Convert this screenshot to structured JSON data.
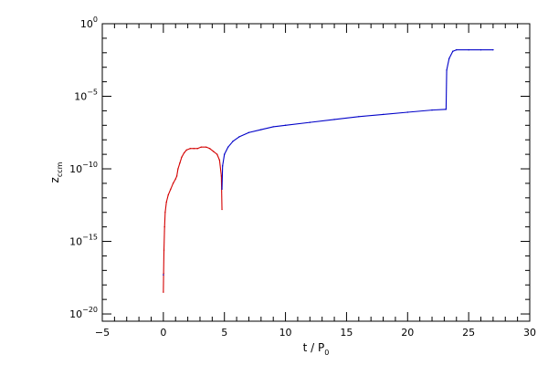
{
  "chart_data": {
    "type": "scatter",
    "title": "",
    "xlabel": {
      "main": "t / P",
      "sub": "0"
    },
    "ylabel": {
      "main": "z",
      "sub": "ccm"
    },
    "xlim": [
      -5,
      30
    ],
    "ylim_log10": [
      -20.5,
      0
    ],
    "y_scale": "log",
    "grid": false,
    "legend": "none",
    "x_ticks": [
      {
        "value": -5,
        "label": "−5"
      },
      {
        "value": 0,
        "label": "0"
      },
      {
        "value": 5,
        "label": "5"
      },
      {
        "value": 10,
        "label": "10"
      },
      {
        "value": 15,
        "label": "15"
      },
      {
        "value": 20,
        "label": "20"
      },
      {
        "value": 25,
        "label": "25"
      },
      {
        "value": 30,
        "label": "30"
      }
    ],
    "y_ticks": [
      {
        "exp": 0,
        "base": "10",
        "power": "0"
      },
      {
        "exp": -5,
        "base": "10",
        "power": "−5"
      },
      {
        "exp": -10,
        "base": "10",
        "power": "−10"
      },
      {
        "exp": -15,
        "base": "10",
        "power": "−15"
      },
      {
        "exp": -20,
        "base": "10",
        "power": "−20"
      }
    ],
    "series": [
      {
        "color": "#d40000",
        "points": [
          [
            0.0,
            -18.5
          ],
          [
            0.02,
            -17.2
          ],
          [
            0.05,
            -15.6
          ],
          [
            0.1,
            -14.0
          ],
          [
            0.15,
            -13.0
          ],
          [
            0.25,
            -12.3
          ],
          [
            0.4,
            -11.8
          ],
          [
            0.6,
            -11.4
          ],
          [
            0.8,
            -11.0
          ],
          [
            1.0,
            -10.7
          ],
          [
            1.1,
            -10.5
          ],
          [
            1.2,
            -10.0
          ],
          [
            1.35,
            -9.6
          ],
          [
            1.5,
            -9.2
          ],
          [
            1.7,
            -8.9
          ],
          [
            1.9,
            -8.7
          ],
          [
            2.2,
            -8.6
          ],
          [
            2.5,
            -8.6
          ],
          [
            2.8,
            -8.6
          ],
          [
            3.1,
            -8.5
          ],
          [
            3.5,
            -8.5
          ],
          [
            3.8,
            -8.6
          ],
          [
            4.1,
            -8.8
          ],
          [
            4.4,
            -9.0
          ],
          [
            4.6,
            -9.4
          ],
          [
            4.75,
            -10.5
          ],
          [
            4.8,
            -12.8
          ]
        ]
      },
      {
        "color": "#0000c8",
        "points": [
          [
            0.0,
            -17.3
          ],
          [
            4.8,
            -11.4
          ],
          [
            4.85,
            -9.8
          ],
          [
            5.0,
            -9.0
          ],
          [
            5.3,
            -8.5
          ],
          [
            5.7,
            -8.1
          ],
          [
            6.2,
            -7.8
          ],
          [
            7.0,
            -7.5
          ],
          [
            8.0,
            -7.3
          ],
          [
            9.0,
            -7.1
          ],
          [
            10.0,
            -7.0
          ],
          [
            12.0,
            -6.8
          ],
          [
            14.0,
            -6.6
          ],
          [
            16.0,
            -6.4
          ],
          [
            18.0,
            -6.25
          ],
          [
            20.0,
            -6.1
          ],
          [
            22.0,
            -5.95
          ],
          [
            23.15,
            -5.9
          ],
          [
            23.2,
            -3.2
          ],
          [
            23.4,
            -2.4
          ],
          [
            23.7,
            -1.9
          ],
          [
            24.0,
            -1.8
          ],
          [
            25.0,
            -1.8
          ],
          [
            26.0,
            -1.8
          ],
          [
            27.0,
            -1.8
          ]
        ]
      }
    ]
  }
}
